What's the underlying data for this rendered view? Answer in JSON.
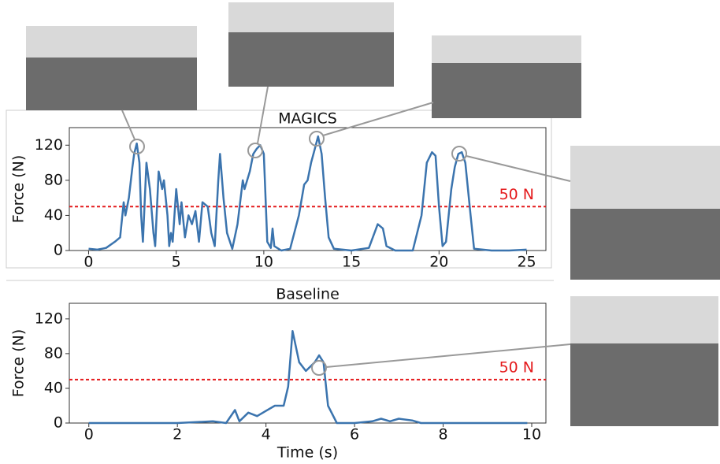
{
  "chart_data": [
    {
      "type": "line",
      "title": "MAGICS",
      "ylabel": "Force (N)",
      "x": [
        0,
        0.5,
        1,
        1.5,
        1.8,
        2.0,
        2.1,
        2.3,
        2.5,
        2.6,
        2.75,
        2.9,
        3.0,
        3.1,
        3.3,
        3.5,
        3.7,
        3.8,
        4.0,
        4.2,
        4.3,
        4.5,
        4.6,
        4.7,
        4.8,
        5.0,
        5.2,
        5.3,
        5.5,
        5.7,
        5.9,
        6.1,
        6.3,
        6.5,
        6.8,
        7.0,
        7.2,
        7.4,
        7.5,
        7.7,
        7.9,
        8.2,
        8.5,
        8.8,
        8.9,
        9.2,
        9.4,
        9.6,
        9.8,
        10.0,
        10.1,
        10.2,
        10.4,
        10.5,
        10.6,
        11,
        11.5,
        12.0,
        12.3,
        12.5,
        12.7,
        12.9,
        13.1,
        13.3,
        13.5,
        13.7,
        14,
        15,
        16,
        16.5,
        16.8,
        17.0,
        17.5,
        18.5,
        19.0,
        19.3,
        19.6,
        19.8,
        20.0,
        20.2,
        20.4,
        20.7,
        20.9,
        21.1,
        21.3,
        21.5,
        21.8,
        22.0,
        23,
        24,
        25
      ],
      "series": [
        {
          "color": "#3b74ae",
          "values": [
            2,
            1,
            3,
            10,
            15,
            55,
            40,
            60,
            95,
            110,
            122,
            100,
            40,
            10,
            100,
            70,
            20,
            5,
            90,
            70,
            80,
            40,
            5,
            20,
            10,
            70,
            30,
            55,
            15,
            40,
            30,
            45,
            10,
            55,
            50,
            20,
            5,
            80,
            110,
            60,
            20,
            2,
            30,
            80,
            70,
            90,
            110,
            116,
            120,
            110,
            60,
            10,
            3,
            25,
            5,
            0,
            2,
            40,
            75,
            80,
            100,
            115,
            130,
            110,
            60,
            15,
            2,
            0,
            3,
            30,
            25,
            5,
            0,
            0,
            40,
            100,
            112,
            108,
            50,
            5,
            10,
            70,
            95,
            110,
            112,
            100,
            40,
            2,
            0,
            0,
            1
          ]
        }
      ],
      "threshold": {
        "value": 50,
        "label": "50 N",
        "color": "#e41a1c"
      },
      "xlim": [
        -1.1,
        26.1
      ],
      "ylim": [
        0,
        140
      ],
      "xticks": [
        0,
        5,
        10,
        15,
        20,
        25
      ],
      "yticks": [
        0,
        40,
        80,
        120
      ]
    },
    {
      "type": "line",
      "title": "Baseline",
      "ylabel": "Force (N)",
      "xlabel": "Time (s)",
      "x": [
        0,
        1,
        2,
        2.8,
        3.1,
        3.3,
        3.4,
        3.6,
        3.8,
        4.0,
        4.2,
        4.4,
        4.5,
        4.6,
        4.75,
        4.9,
        5.1,
        5.2,
        5.3,
        5.4,
        5.6,
        6,
        6.4,
        6.6,
        6.8,
        7.0,
        7.3,
        7.5,
        8,
        9,
        9.9
      ],
      "series": [
        {
          "color": "#3b74ae",
          "values": [
            0,
            0,
            0,
            2,
            0,
            15,
            2,
            12,
            8,
            14,
            20,
            20,
            42,
            106,
            70,
            60,
            70,
            78,
            70,
            20,
            0,
            0,
            2,
            5,
            2,
            5,
            3,
            0,
            0,
            0,
            0
          ]
        }
      ],
      "threshold": {
        "value": 50,
        "label": "50 N",
        "color": "#e41a1c"
      },
      "xlim": [
        -0.44,
        10.32
      ],
      "ylim": [
        0,
        138
      ],
      "xticks": [
        0,
        2,
        4,
        6,
        8,
        10
      ],
      "yticks": [
        0,
        40,
        80,
        120
      ]
    }
  ]
}
